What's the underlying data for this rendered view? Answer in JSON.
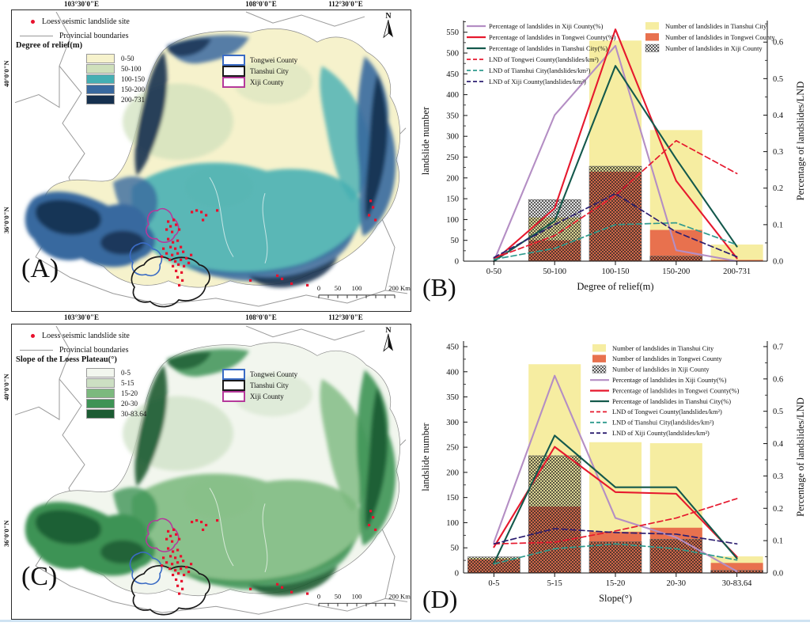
{
  "maps": {
    "shared": {
      "site_legend": "Loess seismic landslide site",
      "boundaries_legend": "Provincial boundaries",
      "site_color": "#e8112d",
      "boundary_color": "#9a9a9a",
      "north_label": "N",
      "scalebar_labels": [
        "0",
        "50",
        "100",
        "200 Km"
      ],
      "top_axis_labels": [
        "103°30'0\"E",
        "108°0'0\"E",
        "112°30'0\"E"
      ],
      "left_axis_labels": [
        "40°0'0\"N",
        "36°0'0\"N"
      ],
      "outlines": [
        {
          "label": "Tongwei County",
          "color": "#3a6bc4"
        },
        {
          "label": "Tianshui City",
          "color": "#1a1a1a"
        },
        {
          "label": "Xiji County",
          "color": "#b5399b"
        }
      ]
    },
    "panel_a": {
      "label": "(A)",
      "ramp_title": "Degree of relief(m)",
      "classes": [
        {
          "label": "0-50",
          "color": "#f6f2cc"
        },
        {
          "label": "50-100",
          "color": "#cfe0bb"
        },
        {
          "label": "100-150",
          "color": "#45afb3"
        },
        {
          "label": "150-200",
          "color": "#39699f"
        },
        {
          "label": "200-731",
          "color": "#16304f"
        }
      ]
    },
    "panel_c": {
      "label": "(C)",
      "ramp_title": "Slope of the Loess Plateau(°)",
      "classes": [
        {
          "label": "0-5",
          "color": "#f2f6ee"
        },
        {
          "label": "5-15",
          "color": "#ccdfc3"
        },
        {
          "label": "15-20",
          "color": "#7cb97e"
        },
        {
          "label": "20-30",
          "color": "#3d9355"
        },
        {
          "label": "30-83.64",
          "color": "#1c5b32"
        }
      ]
    }
  },
  "chart_data": [
    {
      "id": "B",
      "type": "bar+line combo",
      "panel_label": "(B)",
      "categories": [
        "0-50",
        "50-100",
        "100-150",
        "150-200",
        "200-731"
      ],
      "xlabel": "Degree of relief(m)",
      "ylabel_left": "landslide number",
      "ylabel_right": "Percentage of landslides/LND",
      "ylim_left": [
        0,
        578
      ],
      "yticks_left": [
        0,
        50,
        100,
        150,
        200,
        250,
        300,
        350,
        400,
        450,
        500,
        550
      ],
      "ylim_right": [
        0,
        0.659
      ],
      "yticks_right": [
        0.0,
        0.1,
        0.2,
        0.3,
        0.4,
        0.5,
        0.6
      ],
      "legend_position": "lines top-left, bars top-right",
      "bars": [
        {
          "name": "Number of landslides in Tianshui City",
          "color": "#f6eda1",
          "values": [
            0,
            105,
            530,
            315,
            40
          ]
        },
        {
          "name": "Number of landslides in Tongwei County",
          "color": "#e8714e",
          "values": [
            0,
            50,
            215,
            75,
            3
          ]
        },
        {
          "name": "Number of landslides in Xiji County",
          "pattern": "crosshatch",
          "color": "#2b2b2b",
          "values": [
            0,
            148,
            228,
            12,
            0
          ]
        }
      ],
      "lines": [
        {
          "name": "Percentage of landslides in Xiji County(%)",
          "color": "#b48ec4",
          "style": "solid",
          "axis": "right",
          "values": [
            0,
            0.4,
            0.59,
            0.03,
            0.0
          ]
        },
        {
          "name": "Percentage of landslides in Tongwei County(%)",
          "color": "#e6192e",
          "style": "solid",
          "axis": "right",
          "values": [
            0,
            0.145,
            0.635,
            0.22,
            0.008
          ]
        },
        {
          "name": "Percentage of landslides in Tianshui City(%)",
          "color": "#14594c",
          "style": "solid",
          "axis": "right",
          "values": [
            0,
            0.11,
            0.535,
            0.28,
            0.04
          ]
        },
        {
          "name": "LND of Tongwei County(landslides/km²)",
          "color": "#e6192e",
          "style": "dashed",
          "axis": "right",
          "values": [
            0.008,
            0.07,
            0.18,
            0.33,
            0.24
          ]
        },
        {
          "name": "LND of Tianshui City(landslides/km²)",
          "color": "#2f9a8d",
          "style": "dashed",
          "axis": "right",
          "values": [
            0.005,
            0.035,
            0.1,
            0.105,
            0.045
          ]
        },
        {
          "name": "LND of Xiji County(landslides/km²)",
          "color": "#2c1e70",
          "style": "dashed",
          "axis": "right",
          "values": [
            0.01,
            0.1,
            0.185,
            0.08,
            0.012
          ]
        }
      ]
    },
    {
      "id": "D",
      "type": "bar+line combo",
      "panel_label": "(D)",
      "categories": [
        "0-5",
        "5-15",
        "15-20",
        "20-30",
        "30-83.64"
      ],
      "xlabel": "Slope(°)",
      "ylabel_left": "landslide number",
      "ylabel_right": "Percentage of landslides/LND",
      "ylim_left": [
        0,
        461
      ],
      "yticks_left": [
        0,
        50,
        100,
        150,
        200,
        250,
        300,
        350,
        400,
        450
      ],
      "ylim_right": [
        0,
        0.717
      ],
      "yticks_right": [
        0.0,
        0.1,
        0.2,
        0.3,
        0.4,
        0.5,
        0.6,
        0.7
      ],
      "legend_position": "single column top-right",
      "bars": [
        {
          "name": "Number of landslides in Tianshui City",
          "color": "#f6eda1",
          "values": [
            30,
            415,
            260,
            258,
            33
          ]
        },
        {
          "name": "Number of landslides in Tongwei County",
          "color": "#e8714e",
          "values": [
            27,
            132,
            82,
            90,
            20
          ]
        },
        {
          "name": "Number of landslides in Xiji County",
          "pattern": "crosshatch",
          "color": "#2b2b2b",
          "values": [
            32,
            233,
            62,
            67,
            5
          ]
        }
      ],
      "lines": [
        {
          "name": "Percentage of landslides in Xiji County(%)",
          "color": "#b48ec4",
          "style": "solid",
          "axis": "right",
          "values": [
            0.095,
            0.61,
            0.17,
            0.11,
            0.005
          ]
        },
        {
          "name": "Percentage of landslides in Tongwei County(%)",
          "color": "#e6192e",
          "style": "solid",
          "axis": "right",
          "values": [
            0.08,
            0.39,
            0.25,
            0.245,
            0.05
          ]
        },
        {
          "name": "Percentage of landslides in Tianshui City(%)",
          "color": "#14594c",
          "style": "solid",
          "axis": "right",
          "values": [
            0.03,
            0.425,
            0.265,
            0.265,
            0.045
          ]
        },
        {
          "name": "LND of Tongwei County(landslides/km²)",
          "color": "#e6192e",
          "style": "dashed",
          "axis": "right",
          "values": [
            0.09,
            0.095,
            0.13,
            0.17,
            0.23
          ]
        },
        {
          "name": "LND of Tianshui City(landslides/km²)",
          "color": "#2f9a8d",
          "style": "dashed",
          "axis": "right",
          "values": [
            0.028,
            0.075,
            0.09,
            0.075,
            0.04
          ]
        },
        {
          "name": "LND of Xiji County(landslides/km²)",
          "color": "#2c1e70",
          "style": "dashed",
          "axis": "right",
          "values": [
            0.09,
            0.137,
            0.125,
            0.12,
            0.09
          ]
        }
      ]
    }
  ]
}
